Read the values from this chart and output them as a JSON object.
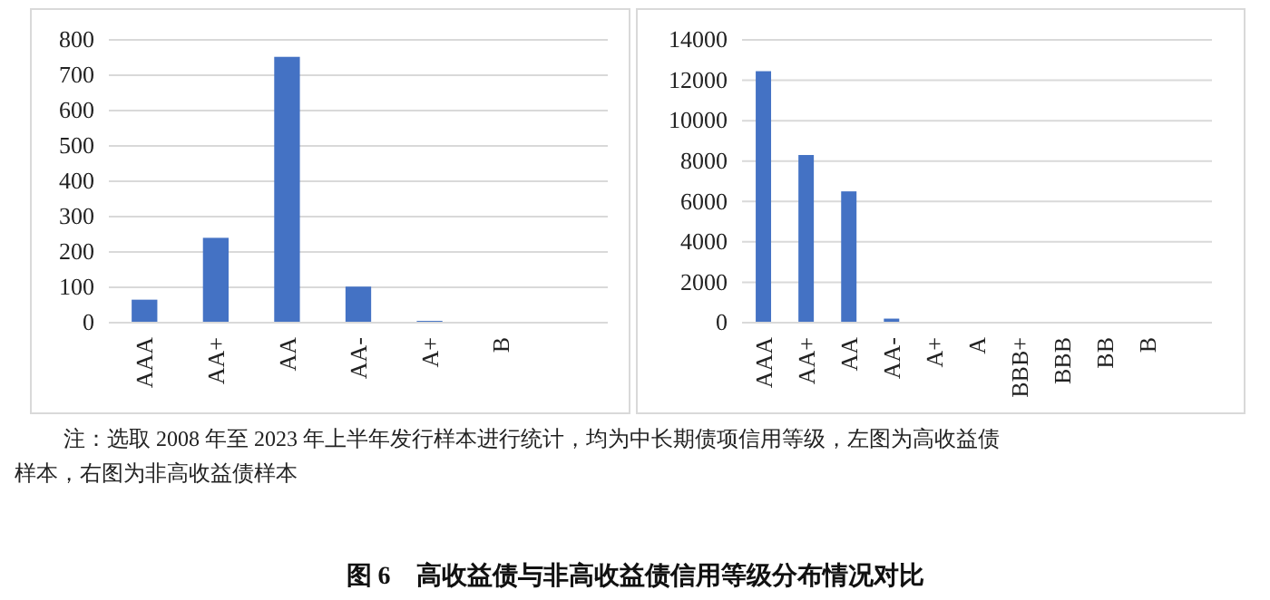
{
  "chart_data": [
    {
      "type": "bar",
      "categories": [
        "AAA",
        "AA+",
        "AA",
        "AA-",
        "A+",
        "B",
        null
      ],
      "values": [
        65,
        240,
        752,
        102,
        5,
        0,
        null
      ],
      "color": "#4472c4",
      "ylim": [
        0,
        800
      ],
      "yticks": [
        0,
        100,
        200,
        300,
        400,
        500,
        600,
        700,
        800
      ],
      "grid": "y",
      "annotations": [
        "注：选取 2008 年至 2023 年上半年发行样本进行统计，均为中长期债项信用等级，左图为高收益债样本，右图为非高收益债样本"
      ],
      "title": "图 6　高收益债与非高收益债信用等级分布情况对比"
    },
    {
      "type": "bar",
      "categories": [
        "AAA",
        "AA+",
        "AA",
        "AA-",
        "A+",
        "A",
        "BBB+",
        "BBB",
        "BB",
        "B",
        null
      ],
      "values": [
        12450,
        8300,
        6500,
        200,
        0,
        0,
        0,
        0,
        0,
        0,
        null
      ],
      "color": "#4472c4",
      "ylim": [
        0,
        14000
      ],
      "yticks": [
        0,
        2000,
        4000,
        6000,
        8000,
        10000,
        12000,
        14000
      ],
      "grid": "y"
    }
  ]
}
